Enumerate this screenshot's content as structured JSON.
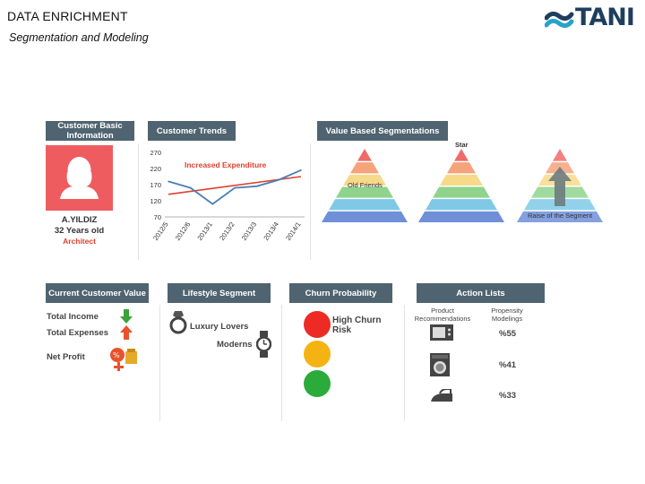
{
  "page": {
    "title": "DATA ENRICHMENT",
    "subtitle": "Segmentation and Modeling"
  },
  "logo": {
    "text": "TANI",
    "colors": [
      "#1f3e5e",
      "#2aa3c8"
    ]
  },
  "panels": {
    "customer_basic": {
      "header": "Customer Basic Information",
      "name": "A.YILDIZ",
      "age": "32 Years old",
      "job": "Architect",
      "avatar_color": "#ee5c60"
    },
    "customer_trends": {
      "header": "Customer Trends",
      "annotation": "Increased Expenditure"
    },
    "value_segments": {
      "header": "Value Based Segmentations",
      "label_star": "Star",
      "label_old_friends": "Old Friends",
      "label_raise": "Raise of the Segment",
      "colors": [
        "#ef6a6a",
        "#f4a37a",
        "#f7d98a",
        "#8fd38d",
        "#7fc9e6",
        "#6f8fd9"
      ]
    },
    "customer_value": {
      "header": "Current Customer Value",
      "total_income": "Total Income",
      "total_expenses": "Total Expenses",
      "net_profit": "Net Profit"
    },
    "lifestyle": {
      "header": "Lifestyle Segment",
      "luxury": "Luxury Lovers",
      "moderns": "Moderns"
    },
    "churn": {
      "header": "Churn Probability",
      "label": "High Churn Risk",
      "colors": {
        "red": "#ee2a24",
        "yellow": "#f5b313",
        "green": "#2aab3a"
      }
    },
    "actions": {
      "header": "Action Lists",
      "col1": "Product Recommendations",
      "col2": "Propensity Modelings",
      "items": [
        {
          "icon": "microwave-icon",
          "pct": "%55"
        },
        {
          "icon": "washing-machine-icon",
          "pct": "%41"
        },
        {
          "icon": "iron-icon",
          "pct": "%33"
        }
      ]
    }
  },
  "chart_data": {
    "type": "line",
    "title": "",
    "xlabel": "",
    "ylabel": "",
    "x": [
      "2012/5",
      "2012/6",
      "2013/1",
      "2013/2",
      "2013/3",
      "2013/4",
      "2014/1"
    ],
    "y_ticks": [
      270,
      220,
      170,
      120,
      70
    ],
    "ylim": [
      70,
      270
    ],
    "series": [
      {
        "values": [
          180,
          160,
          110,
          160,
          165,
          185,
          215
        ],
        "color": "#4a7fb5"
      }
    ],
    "trend": {
      "start": 140,
      "end": 195,
      "color": "#e0402e"
    },
    "annotation": "Increased Expenditure"
  }
}
